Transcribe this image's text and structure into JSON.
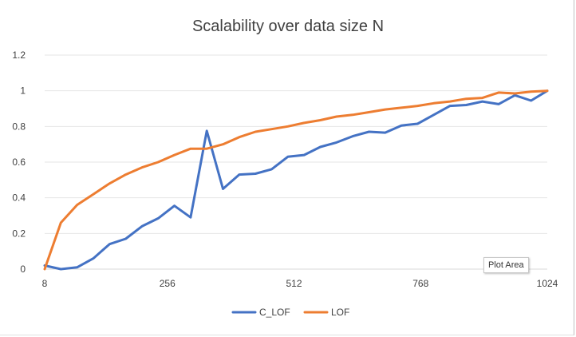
{
  "chart_data": {
    "type": "line",
    "title": "Scalability over data size N",
    "xlabel": "",
    "ylabel": "",
    "x_ticks": [
      "8",
      "256",
      "512",
      "768",
      "1024"
    ],
    "y_ticks": [
      "0",
      "0.2",
      "0.4",
      "0.6",
      "0.8",
      "1",
      "1.2"
    ],
    "ylim": [
      0,
      1.2
    ],
    "grid": "horizontal",
    "legend_position": "bottom",
    "series": [
      {
        "name": "C_LOF",
        "color": "#4472C4",
        "values": [
          0.02,
          0.0,
          0.01,
          0.06,
          0.14,
          0.17,
          0.24,
          0.285,
          0.355,
          0.29,
          0.775,
          0.45,
          0.53,
          0.535,
          0.56,
          0.63,
          0.64,
          0.685,
          0.71,
          0.745,
          0.77,
          0.765,
          0.805,
          0.815,
          0.865,
          0.915,
          0.92,
          0.94,
          0.925,
          0.975,
          0.945,
          1.0
        ]
      },
      {
        "name": "LOF",
        "color": "#ED7D31",
        "values": [
          0.0,
          0.26,
          0.36,
          0.42,
          0.48,
          0.53,
          0.57,
          0.6,
          0.64,
          0.675,
          0.675,
          0.7,
          0.74,
          0.77,
          0.785,
          0.8,
          0.82,
          0.835,
          0.855,
          0.865,
          0.88,
          0.895,
          0.905,
          0.915,
          0.93,
          0.94,
          0.955,
          0.96,
          0.99,
          0.985,
          0.995,
          1.0
        ]
      }
    ]
  },
  "tooltip": {
    "text": "Plot Area"
  }
}
